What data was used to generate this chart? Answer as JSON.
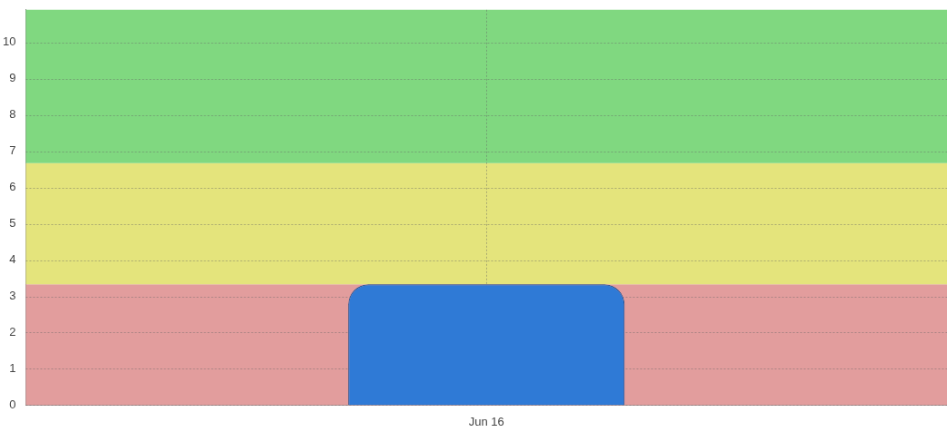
{
  "chart_data": {
    "type": "bar",
    "categories": [
      "Jun 16"
    ],
    "values": [
      3.33
    ],
    "color": "#2f7ad6",
    "ylim": [
      0,
      10.9
    ],
    "yticks": [
      0,
      1,
      2,
      3,
      4,
      5,
      6,
      7,
      8,
      9,
      10
    ],
    "grid": true,
    "legend": false,
    "bands": [
      {
        "axis": "y",
        "from": 0,
        "to": 3.33,
        "color": "#e29d9d"
      },
      {
        "axis": "y",
        "from": 3.33,
        "to": 6.67,
        "color": "#e4e47c"
      },
      {
        "axis": "y",
        "from": 6.67,
        "to": 10.9,
        "color": "#80d880"
      }
    ]
  }
}
